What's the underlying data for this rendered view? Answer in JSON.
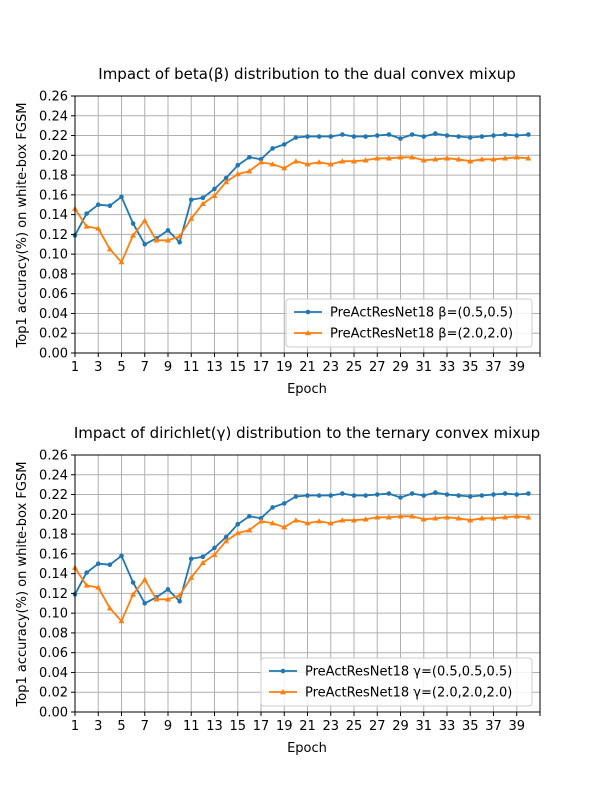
{
  "chart_data": [
    {
      "type": "line",
      "title": "Impact of beta(β) distribution to the dual convex mixup",
      "xlabel": "Epoch",
      "ylabel": "Top1 accuracy(%) on white-box FGSM",
      "xlim": [
        1,
        41
      ],
      "ylim": [
        0,
        0.26
      ],
      "xticks": [
        1,
        3,
        5,
        7,
        9,
        11,
        13,
        15,
        17,
        19,
        21,
        23,
        25,
        27,
        29,
        31,
        33,
        35,
        37,
        39
      ],
      "yticks": [
        "0.00",
        "0.02",
        "0.04",
        "0.06",
        "0.08",
        "0.10",
        "0.12",
        "0.14",
        "0.16",
        "0.18",
        "0.20",
        "0.22",
        "0.24",
        "0.26"
      ],
      "grid": true,
      "legend_position": "lower-right",
      "x": [
        1,
        2,
        3,
        4,
        5,
        6,
        7,
        8,
        9,
        10,
        11,
        12,
        13,
        14,
        15,
        16,
        17,
        18,
        19,
        20,
        21,
        22,
        23,
        24,
        25,
        26,
        27,
        28,
        29,
        30,
        31,
        32,
        33,
        34,
        35,
        36,
        37,
        38,
        39,
        40
      ],
      "series": [
        {
          "name": "PreActResNet18 β=(0.5,0.5)",
          "color": "#1f77b4",
          "marker": "circle",
          "values": [
            0.119,
            0.141,
            0.15,
            0.149,
            0.158,
            0.131,
            0.11,
            0.116,
            0.124,
            0.112,
            0.155,
            0.157,
            0.166,
            0.177,
            0.19,
            0.198,
            0.196,
            0.207,
            0.211,
            0.218,
            0.219,
            0.219,
            0.219,
            0.221,
            0.219,
            0.219,
            0.22,
            0.221,
            0.217,
            0.221,
            0.219,
            0.222,
            0.22,
            0.219,
            0.218,
            0.219,
            0.22,
            0.221,
            0.22,
            0.221
          ]
        },
        {
          "name": "PreActResNet18 β=(2.0,2.0)",
          "color": "#ff7f0e",
          "marker": "triangle",
          "values": [
            0.146,
            0.128,
            0.126,
            0.105,
            0.092,
            0.119,
            0.134,
            0.114,
            0.114,
            0.118,
            0.136,
            0.151,
            0.159,
            0.173,
            0.181,
            0.184,
            0.193,
            0.191,
            0.187,
            0.194,
            0.191,
            0.193,
            0.191,
            0.194,
            0.194,
            0.195,
            0.197,
            0.197,
            0.198,
            0.198,
            0.195,
            0.196,
            0.197,
            0.196,
            0.194,
            0.196,
            0.196,
            0.197,
            0.198,
            0.197
          ]
        }
      ]
    },
    {
      "type": "line",
      "title": "Impact of dirichlet(γ) distribution to the ternary convex mixup",
      "xlabel": "Epoch",
      "ylabel": "Top1 accuracy(%) on white-box FGSM",
      "xlim": [
        1,
        41
      ],
      "ylim": [
        0,
        0.26
      ],
      "xticks": [
        1,
        3,
        5,
        7,
        9,
        11,
        13,
        15,
        17,
        19,
        21,
        23,
        25,
        27,
        29,
        31,
        33,
        35,
        37,
        39
      ],
      "yticks": [
        "0.00",
        "0.02",
        "0.04",
        "0.06",
        "0.08",
        "0.10",
        "0.12",
        "0.14",
        "0.16",
        "0.18",
        "0.20",
        "0.22",
        "0.24",
        "0.26"
      ],
      "grid": true,
      "legend_position": "lower-right",
      "x": [
        1,
        2,
        3,
        4,
        5,
        6,
        7,
        8,
        9,
        10,
        11,
        12,
        13,
        14,
        15,
        16,
        17,
        18,
        19,
        20,
        21,
        22,
        23,
        24,
        25,
        26,
        27,
        28,
        29,
        30,
        31,
        32,
        33,
        34,
        35,
        36,
        37,
        38,
        39,
        40
      ],
      "series": [
        {
          "name": "PreActResNet18 γ=(0.5,0.5,0.5)",
          "color": "#1f77b4",
          "marker": "circle",
          "values": [
            0.119,
            0.141,
            0.15,
            0.149,
            0.158,
            0.131,
            0.11,
            0.116,
            0.124,
            0.112,
            0.155,
            0.157,
            0.166,
            0.177,
            0.19,
            0.198,
            0.196,
            0.207,
            0.211,
            0.218,
            0.219,
            0.219,
            0.219,
            0.221,
            0.219,
            0.219,
            0.22,
            0.221,
            0.217,
            0.221,
            0.219,
            0.222,
            0.22,
            0.219,
            0.218,
            0.219,
            0.22,
            0.221,
            0.22,
            0.221
          ]
        },
        {
          "name": "PreActResNet18 γ=(2.0,2.0,2.0)",
          "color": "#ff7f0e",
          "marker": "triangle",
          "values": [
            0.146,
            0.128,
            0.126,
            0.105,
            0.092,
            0.119,
            0.134,
            0.114,
            0.114,
            0.118,
            0.136,
            0.151,
            0.159,
            0.173,
            0.181,
            0.184,
            0.193,
            0.191,
            0.187,
            0.194,
            0.191,
            0.193,
            0.191,
            0.194,
            0.194,
            0.195,
            0.197,
            0.197,
            0.198,
            0.198,
            0.195,
            0.196,
            0.197,
            0.196,
            0.194,
            0.196,
            0.196,
            0.197,
            0.198,
            0.197
          ]
        }
      ]
    }
  ]
}
